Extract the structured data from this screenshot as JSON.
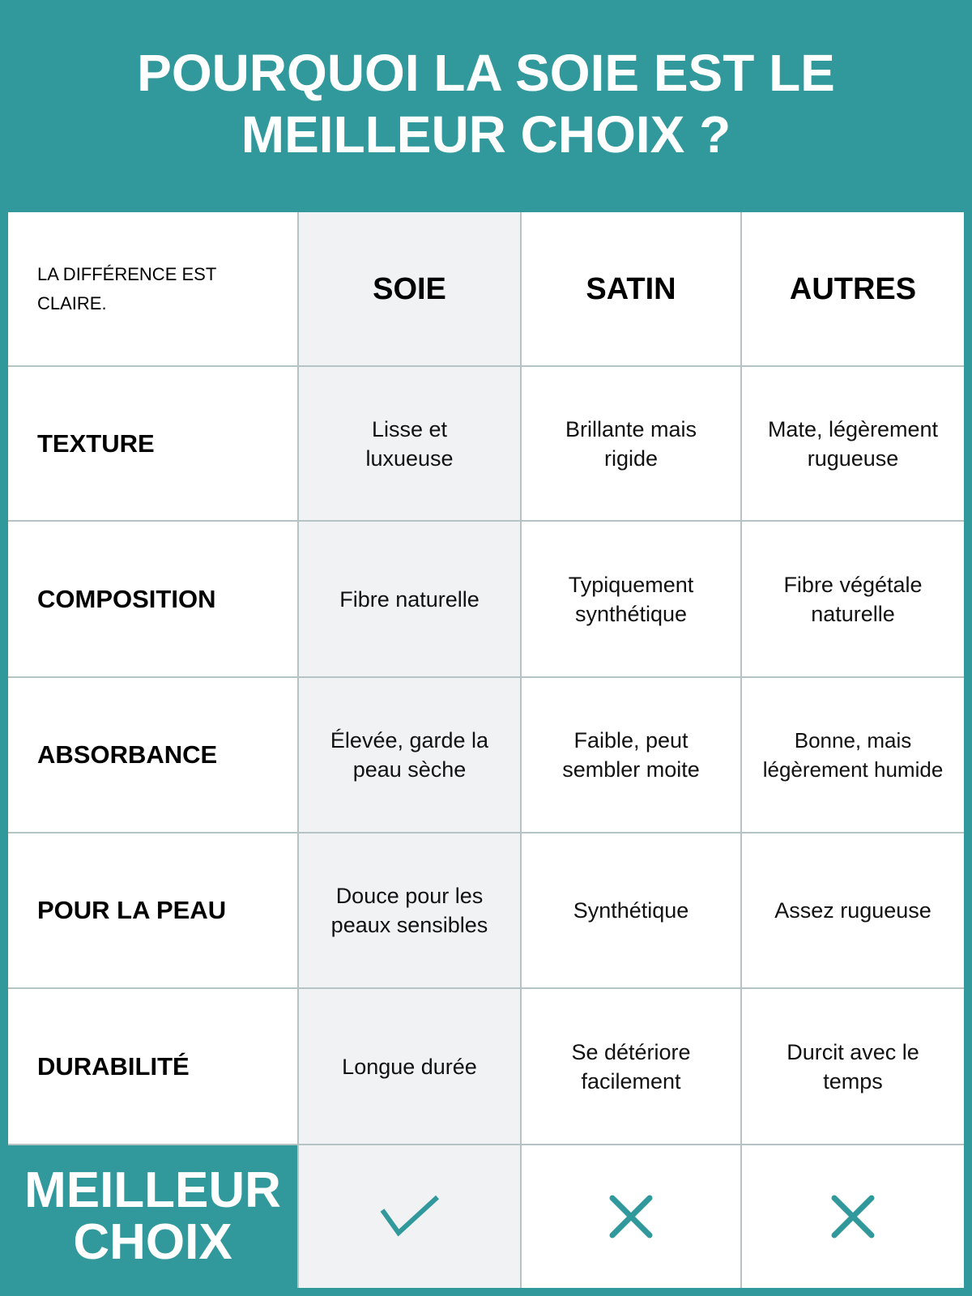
{
  "title": {
    "line1": "POURQUOI LA SOIE EST LE",
    "line2": "MEILLEUR CHOIX ?"
  },
  "header": {
    "note": "LA DIFFÉRENCE EST CLAIRE.",
    "columns": [
      "SOIE",
      "SATIN",
      "AUTRES"
    ]
  },
  "rows": [
    {
      "label": "TEXTURE",
      "values": [
        "Lisse et luxueuse",
        "Brillante mais rigide",
        "Mate, légèrement rugueuse"
      ]
    },
    {
      "label": "COMPOSITION",
      "values": [
        "Fibre naturelle",
        "Typiquement synthétique",
        "Fibre végétale naturelle"
      ]
    },
    {
      "label": "ABSORBANCE",
      "values": [
        "Élevée, garde la peau sèche",
        "Faible, peut sembler moite",
        "Bonne, mais légèrement humide"
      ]
    },
    {
      "label": "POUR LA PEAU",
      "values": [
        "Douce pour les peaux sensibles",
        "Synthétique",
        "Assez rugueuse"
      ]
    },
    {
      "label": "DURABILITÉ",
      "values": [
        "Longue durée",
        "Se détériore facilement",
        "Durcit avec le temps"
      ]
    }
  ],
  "best": {
    "line1": "MEILLEUR",
    "line2": "CHOIX",
    "icons": [
      "check-icon",
      "x-icon",
      "x-icon"
    ]
  },
  "colors": {
    "teal": "#31999c",
    "soie_bg": "#f1f2f4",
    "grid": "#b5c3c4"
  }
}
